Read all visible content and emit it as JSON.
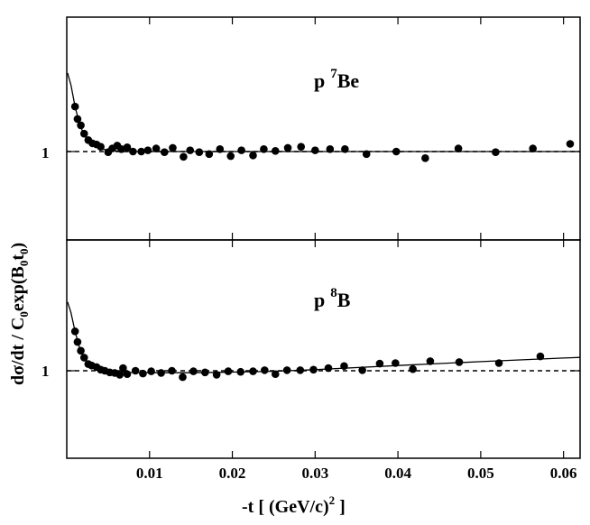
{
  "chart_data": [
    {
      "type": "scatter",
      "label_main": "p",
      "label_sup": "7",
      "label_elem": "Be",
      "x_range": [
        0,
        0.062
      ],
      "y_ref_tick": "1",
      "reference_line": 1,
      "points": [
        {
          "x": 0.001,
          "y": 2.05
        },
        {
          "x": 0.0013,
          "y": 1.68
        },
        {
          "x": 0.0017,
          "y": 1.52
        },
        {
          "x": 0.0021,
          "y": 1.33
        },
        {
          "x": 0.0026,
          "y": 1.2
        },
        {
          "x": 0.0031,
          "y": 1.14
        },
        {
          "x": 0.0036,
          "y": 1.12
        },
        {
          "x": 0.0041,
          "y": 1.08
        },
        {
          "x": 0.005,
          "y": 0.99
        },
        {
          "x": 0.0055,
          "y": 1.05
        },
        {
          "x": 0.0061,
          "y": 1.1
        },
        {
          "x": 0.0066,
          "y": 1.04
        },
        {
          "x": 0.0073,
          "y": 1.07
        },
        {
          "x": 0.008,
          "y": 1.0
        },
        {
          "x": 0.009,
          "y": 1.0
        },
        {
          "x": 0.0098,
          "y": 1.02
        },
        {
          "x": 0.0108,
          "y": 1.05
        },
        {
          "x": 0.0118,
          "y": 0.99
        },
        {
          "x": 0.0128,
          "y": 1.06
        },
        {
          "x": 0.0141,
          "y": 0.92
        },
        {
          "x": 0.0149,
          "y": 1.02
        },
        {
          "x": 0.016,
          "y": 0.99
        },
        {
          "x": 0.0172,
          "y": 0.96
        },
        {
          "x": 0.0185,
          "y": 1.04
        },
        {
          "x": 0.0198,
          "y": 0.93
        },
        {
          "x": 0.0211,
          "y": 1.02
        },
        {
          "x": 0.0225,
          "y": 0.94
        },
        {
          "x": 0.0238,
          "y": 1.04
        },
        {
          "x": 0.0252,
          "y": 1.01
        },
        {
          "x": 0.0267,
          "y": 1.06
        },
        {
          "x": 0.0283,
          "y": 1.08
        },
        {
          "x": 0.03,
          "y": 1.02
        },
        {
          "x": 0.0318,
          "y": 1.04
        },
        {
          "x": 0.0336,
          "y": 1.04
        },
        {
          "x": 0.0362,
          "y": 0.96
        },
        {
          "x": 0.0398,
          "y": 1.0
        },
        {
          "x": 0.0433,
          "y": 0.9
        },
        {
          "x": 0.0473,
          "y": 1.05
        },
        {
          "x": 0.0518,
          "y": 0.99
        },
        {
          "x": 0.0563,
          "y": 1.05
        },
        {
          "x": 0.0608,
          "y": 1.13
        }
      ],
      "fit_curve": [
        {
          "x": 0.0001,
          "y": 3.5
        },
        {
          "x": 0.0005,
          "y": 2.9
        },
        {
          "x": 0.001,
          "y": 2.05
        },
        {
          "x": 0.0015,
          "y": 1.58
        },
        {
          "x": 0.002,
          "y": 1.34
        },
        {
          "x": 0.0025,
          "y": 1.2
        },
        {
          "x": 0.003,
          "y": 1.12
        },
        {
          "x": 0.004,
          "y": 1.05
        },
        {
          "x": 0.005,
          "y": 1.02
        },
        {
          "x": 0.007,
          "y": 1.0
        },
        {
          "x": 0.01,
          "y": 1.0
        },
        {
          "x": 0.03,
          "y": 1.0
        },
        {
          "x": 0.062,
          "y": 1.0
        }
      ]
    },
    {
      "type": "scatter",
      "label_main": "p",
      "label_sup": "8",
      "label_elem": "B",
      "x_range": [
        0,
        0.062
      ],
      "y_ref_tick": "1",
      "reference_line": 1,
      "points": [
        {
          "x": 0.001,
          "y": 2.05
        },
        {
          "x": 0.0013,
          "y": 1.69
        },
        {
          "x": 0.0017,
          "y": 1.44
        },
        {
          "x": 0.0021,
          "y": 1.27
        },
        {
          "x": 0.0026,
          "y": 1.13
        },
        {
          "x": 0.003,
          "y": 1.1
        },
        {
          "x": 0.0036,
          "y": 1.07
        },
        {
          "x": 0.0041,
          "y": 1.02
        },
        {
          "x": 0.0046,
          "y": 1.0
        },
        {
          "x": 0.0052,
          "y": 0.97
        },
        {
          "x": 0.0058,
          "y": 0.96
        },
        {
          "x": 0.0064,
          "y": 0.93
        },
        {
          "x": 0.0068,
          "y": 1.05
        },
        {
          "x": 0.0073,
          "y": 0.94
        },
        {
          "x": 0.0083,
          "y": 1.0
        },
        {
          "x": 0.0092,
          "y": 0.95
        },
        {
          "x": 0.0102,
          "y": 0.99
        },
        {
          "x": 0.0114,
          "y": 0.96
        },
        {
          "x": 0.0127,
          "y": 1.0
        },
        {
          "x": 0.014,
          "y": 0.89
        },
        {
          "x": 0.0153,
          "y": 0.99
        },
        {
          "x": 0.0167,
          "y": 0.97
        },
        {
          "x": 0.0181,
          "y": 0.93
        },
        {
          "x": 0.0195,
          "y": 0.99
        },
        {
          "x": 0.021,
          "y": 0.98
        },
        {
          "x": 0.0225,
          "y": 0.99
        },
        {
          "x": 0.0239,
          "y": 1.01
        },
        {
          "x": 0.0252,
          "y": 0.94
        },
        {
          "x": 0.0266,
          "y": 1.01
        },
        {
          "x": 0.0282,
          "y": 1.01
        },
        {
          "x": 0.0298,
          "y": 1.02
        },
        {
          "x": 0.0316,
          "y": 1.05
        },
        {
          "x": 0.0335,
          "y": 1.09
        },
        {
          "x": 0.0357,
          "y": 1.01
        },
        {
          "x": 0.0378,
          "y": 1.14
        },
        {
          "x": 0.0397,
          "y": 1.15
        },
        {
          "x": 0.0418,
          "y": 1.03
        },
        {
          "x": 0.0439,
          "y": 1.19
        },
        {
          "x": 0.0474,
          "y": 1.17
        },
        {
          "x": 0.0522,
          "y": 1.15
        },
        {
          "x": 0.0572,
          "y": 1.3
        }
      ],
      "fit_curve": [
        {
          "x": 0.0001,
          "y": 3.5
        },
        {
          "x": 0.0005,
          "y": 2.9
        },
        {
          "x": 0.001,
          "y": 2.05
        },
        {
          "x": 0.0015,
          "y": 1.55
        },
        {
          "x": 0.002,
          "y": 1.3
        },
        {
          "x": 0.0025,
          "y": 1.16
        },
        {
          "x": 0.003,
          "y": 1.09
        },
        {
          "x": 0.004,
          "y": 1.02
        },
        {
          "x": 0.005,
          "y": 0.99
        },
        {
          "x": 0.007,
          "y": 0.97
        },
        {
          "x": 0.01,
          "y": 0.965
        },
        {
          "x": 0.015,
          "y": 0.965
        },
        {
          "x": 0.02,
          "y": 0.975
        },
        {
          "x": 0.025,
          "y": 0.99
        },
        {
          "x": 0.03,
          "y": 1.02
        },
        {
          "x": 0.035,
          "y": 1.06
        },
        {
          "x": 0.04,
          "y": 1.1
        },
        {
          "x": 0.045,
          "y": 1.14
        },
        {
          "x": 0.05,
          "y": 1.18
        },
        {
          "x": 0.055,
          "y": 1.22
        },
        {
          "x": 0.06,
          "y": 1.26
        },
        {
          "x": 0.062,
          "y": 1.275
        }
      ]
    }
  ],
  "x_ticks": [
    {
      "value": 0.01,
      "label": "0.01"
    },
    {
      "value": 0.02,
      "label": "0.02"
    },
    {
      "value": 0.03,
      "label": "0.03"
    },
    {
      "value": 0.04,
      "label": "0.04"
    },
    {
      "value": 0.05,
      "label": "0.05"
    },
    {
      "value": 0.06,
      "label": "0.06"
    }
  ],
  "xlabel": "-t  [ (GeV/c)",
  "xlabel_sup": "2",
  "xlabel_end": " ]",
  "ylabel": "dσ/dt / C",
  "ylabel_sub1": "0",
  "ylabel_mid": "exp(B",
  "ylabel_sub2": "0",
  "ylabel_t": "t",
  "ylabel_sub3": "0",
  "ylabel_end": ")",
  "y_scale": "log",
  "error_bar_halfwidth": 0.05
}
